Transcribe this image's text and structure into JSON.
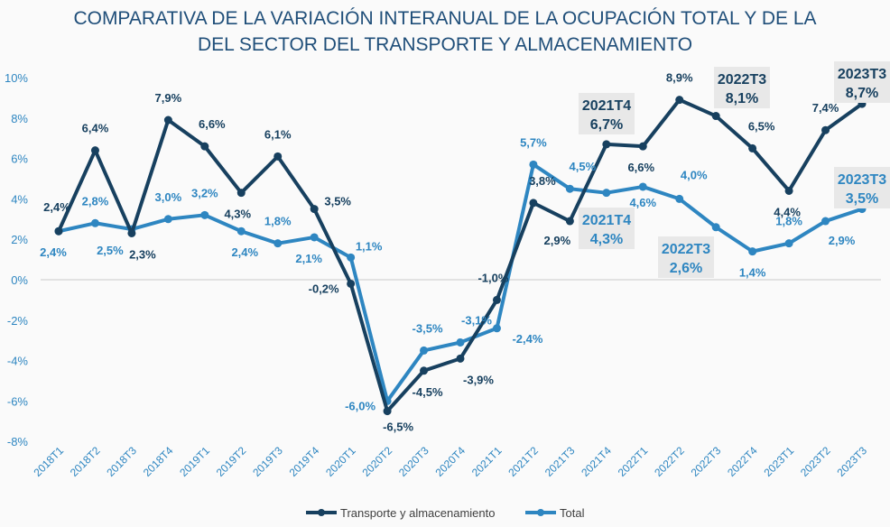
{
  "chart_data": {
    "type": "line",
    "title": "COMPARATIVA DE LA VARIACIÓN INTERANUAL DE LA OCUPACIÓN TOTAL Y DE LA DEL SECTOR DEL TRANSPORTE Y ALMACENAMIENTO",
    "title_lines": [
      "COMPARATIVA DE LA VARIACIÓN INTERANUAL DE LA OCUPACIÓN TOTAL Y DE LA",
      "DEL SECTOR DEL TRANSPORTE Y ALMACENAMIENTO"
    ],
    "xlabel": "",
    "ylabel": "",
    "ylim": [
      -8,
      10
    ],
    "yticks": [
      10,
      8,
      6,
      4,
      2,
      0,
      -2,
      -4,
      -6,
      -8
    ],
    "ytick_labels": [
      "10%",
      "8%",
      "6%",
      "4%",
      "2%",
      "0%",
      "-2%",
      "-4%",
      "-6%",
      "-8%"
    ],
    "grid": "zero-line only",
    "legend_position": "bottom",
    "categories": [
      "2018T1",
      "2018T2",
      "2018T3",
      "2018T4",
      "2019T1",
      "2019T2",
      "2019T3",
      "2019T4",
      "2020T1",
      "2020T2",
      "2020T3",
      "2020T4",
      "2021T1",
      "2021T2",
      "2021T3",
      "2021T4",
      "2022T1",
      "2022T2",
      "2022T3",
      "2022T4",
      "2023T1",
      "2023T2",
      "2023T3"
    ],
    "series": [
      {
        "name": "Transporte y almacenamiento",
        "color": "#17405f",
        "values": [
          2.4,
          6.4,
          2.3,
          7.9,
          6.6,
          4.3,
          6.1,
          3.5,
          -0.2,
          -6.5,
          -4.5,
          -3.9,
          -1.0,
          3.8,
          2.9,
          6.7,
          6.6,
          8.9,
          8.1,
          6.5,
          4.4,
          7.4,
          8.7
        ],
        "labels": [
          "2,4%",
          "6,4%",
          "2,3%",
          "7,9%",
          "6,6%",
          "4,3%",
          "6,1%",
          "3,5%",
          "-0,2%",
          "-6,5%",
          "-4,5%",
          "-3,9%",
          "-1,0%",
          "3,8%",
          "2,9%",
          "6,7%",
          "6,6%",
          "8,9%",
          "8,1%",
          "6,5%",
          "4,4%",
          "7,4%",
          "8,7%"
        ]
      },
      {
        "name": "Total",
        "color": "#2e86c1",
        "values": [
          2.4,
          2.8,
          2.5,
          3.0,
          3.2,
          2.4,
          1.8,
          2.1,
          1.1,
          -6.0,
          -3.5,
          -3.1,
          -2.4,
          5.7,
          4.5,
          4.3,
          4.6,
          4.0,
          2.6,
          1.4,
          1.8,
          2.9,
          3.5
        ],
        "labels": [
          "2,4%",
          "2,8%",
          "2,5%",
          "3,0%",
          "3,2%",
          "2,4%",
          "1,8%",
          "2,1%",
          "1,1%",
          "-6,0%",
          "-3,5%",
          "-3,1%",
          "-2,4%",
          "5,7%",
          "4,5%",
          "4,3%",
          "4,6%",
          "4,0%",
          "2,6%",
          "1,4%",
          "1,8%",
          "2,9%",
          "3,5%"
        ]
      }
    ],
    "callouts": [
      {
        "series": 0,
        "index": 15,
        "line1": "2021T4",
        "line2": "6,7%"
      },
      {
        "series": 0,
        "index": 18,
        "line1": "2022T3",
        "line2": "8,1%"
      },
      {
        "series": 0,
        "index": 22,
        "line1": "2023T3",
        "line2": "8,7%"
      },
      {
        "series": 1,
        "index": 15,
        "line1": "2021T4",
        "line2": "4,3%"
      },
      {
        "series": 1,
        "index": 18,
        "line1": "2022T3",
        "line2": "2,6%"
      },
      {
        "series": 1,
        "index": 22,
        "line1": "2023T3",
        "line2": "3,5%"
      }
    ]
  }
}
